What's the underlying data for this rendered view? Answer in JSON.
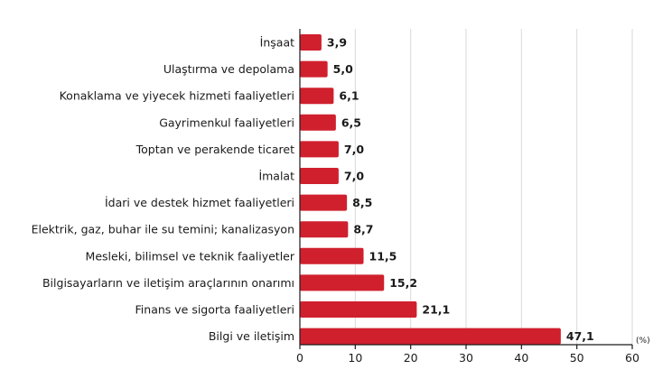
{
  "chart_data": {
    "type": "bar",
    "orientation": "horizontal",
    "categories": [
      "İnşaat",
      "Ulaştırma ve depolama",
      "Konaklama ve yiyecek hizmeti faaliyetleri",
      "Gayrimenkul faaliyetleri",
      "Toptan ve perakende ticaret",
      "İmalat",
      "İdari ve destek hizmet faaliyetleri",
      "Elektrik, gaz, buhar ile su temini; kanalizasyon",
      "Mesleki, bilimsel ve teknik faaliyetler",
      "Bilgisayarların ve iletişim araçlarının onarımı",
      "Finans ve sigorta faaliyetleri",
      "Bilgi ve iletişim"
    ],
    "values": [
      3.9,
      5.0,
      6.1,
      6.5,
      7.0,
      7.0,
      8.5,
      8.7,
      11.5,
      15.2,
      21.1,
      47.1
    ],
    "value_labels": [
      "3,9",
      "5,0",
      "6,1",
      "6,5",
      "7,0",
      "7,0",
      "8,5",
      "8,7",
      "11,5",
      "15,2",
      "21,1",
      "47,1"
    ],
    "xlim": [
      0,
      60
    ],
    "xticks": [
      0,
      10,
      20,
      30,
      40,
      50,
      60
    ],
    "xticks_labels": [
      "0",
      "10",
      "20",
      "30",
      "40",
      "50",
      "60"
    ],
    "x_unit": "(%)",
    "bar_color": "#d0202e",
    "grid": true
  }
}
